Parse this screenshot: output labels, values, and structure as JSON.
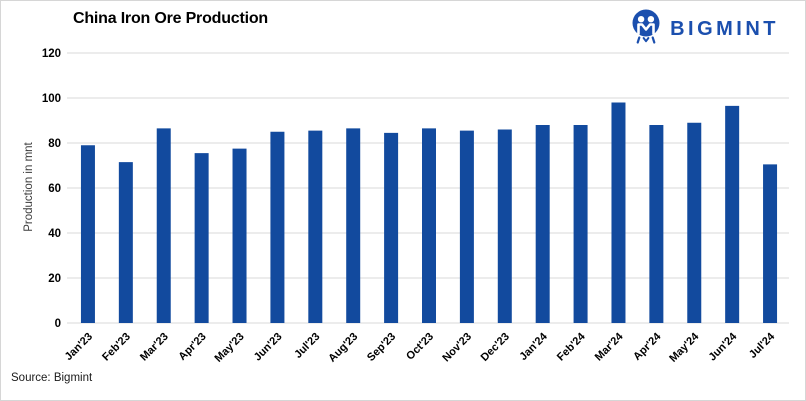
{
  "header": {
    "title": "China Iron Ore Production",
    "brand": {
      "name": "BIGMINT",
      "icon": "miner-circle-icon",
      "color": "#1b4fae"
    }
  },
  "footer": {
    "source": "Source: Bigmint"
  },
  "chart_data": {
    "type": "bar",
    "title": "China Iron Ore Production",
    "categories": [
      "Jan'23",
      "Feb'23",
      "Mar'23",
      "Apr'23",
      "May'23",
      "Jun'23",
      "Jul'23",
      "Aug'23",
      "Sep'23",
      "Oct'23",
      "Nov'23",
      "Dec'23",
      "Jan'24",
      "Feb'24",
      "Mar'24",
      "Apr'24",
      "May'24",
      "Jun'24",
      "Jul'24"
    ],
    "values": [
      79,
      71.5,
      86.5,
      75.5,
      77.5,
      85,
      85.5,
      86.5,
      84.5,
      86.5,
      85.5,
      86,
      88,
      88,
      98,
      88,
      89,
      96.5,
      70.5
    ],
    "xlabel": "",
    "ylabel": "Production in mnt",
    "ylim": [
      0,
      120
    ],
    "ytick_step": 20,
    "yticks": [
      0,
      20,
      40,
      60,
      80,
      100,
      120
    ],
    "grid": true,
    "legend": "none",
    "bar_color": "#124a9e",
    "gridline_color": "#d9d9d9",
    "tick_label_color": "#000000"
  }
}
